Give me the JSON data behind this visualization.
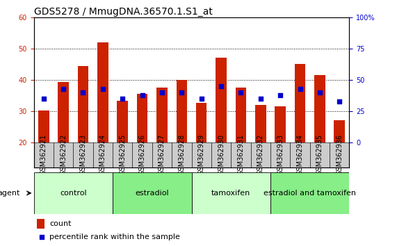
{
  "title": "GDS5278 / MmugDNA.36570.1.S1_at",
  "samples": [
    "GSM362921",
    "GSM362922",
    "GSM362923",
    "GSM362924",
    "GSM362925",
    "GSM362926",
    "GSM362927",
    "GSM362928",
    "GSM362929",
    "GSM362930",
    "GSM362931",
    "GSM362932",
    "GSM362933",
    "GSM362934",
    "GSM362935",
    "GSM362936"
  ],
  "count_values": [
    30.2,
    39.2,
    44.5,
    52.0,
    33.2,
    35.5,
    37.5,
    40.0,
    32.5,
    47.0,
    37.5,
    32.0,
    31.5,
    45.0,
    41.5,
    27.0
  ],
  "percentile_values": [
    34,
    37,
    36,
    37,
    34,
    35,
    36,
    36,
    34,
    38,
    36,
    34,
    35,
    37,
    36,
    33
  ],
  "bar_bottom": 20,
  "ylim_left": [
    20,
    60
  ],
  "ylim_right": [
    0,
    100
  ],
  "yticks_left": [
    20,
    30,
    40,
    50,
    60
  ],
  "yticks_right": [
    0,
    25,
    50,
    75,
    100
  ],
  "bar_color": "#CC2200",
  "dot_color": "#0000CC",
  "groups": [
    {
      "label": "control",
      "start": 0,
      "end": 4,
      "color": "#CCFFCC"
    },
    {
      "label": "estradiol",
      "start": 4,
      "end": 8,
      "color": "#88EE88"
    },
    {
      "label": "tamoxifen",
      "start": 8,
      "end": 12,
      "color": "#CCFFCC"
    },
    {
      "label": "estradiol and tamoxifen",
      "start": 12,
      "end": 16,
      "color": "#88EE88"
    }
  ],
  "agent_label": "agent",
  "legend_count_label": "count",
  "legend_pct_label": "percentile rank within the sample",
  "title_fontsize": 10,
  "tick_fontsize": 7,
  "label_fontsize": 8,
  "group_label_fontsize": 8,
  "bar_width": 0.55,
  "figsize": [
    5.71,
    3.54
  ],
  "dpi": 100,
  "xtick_bg_color": "#CCCCCC",
  "plot_bg_color": "#FFFFFF",
  "spine_color": "#000000"
}
